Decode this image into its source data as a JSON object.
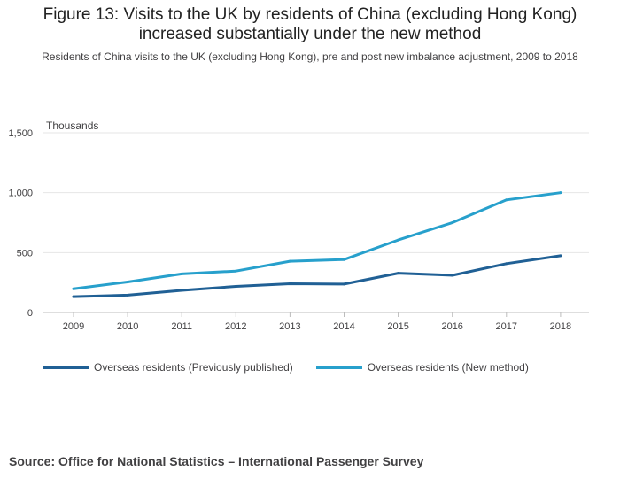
{
  "title": "Figure 13: Visits to the UK by residents of China (excluding Hong Kong) increased substantially under the new method",
  "subtitle": "Residents of China visits to the UK (excluding Hong Kong), pre and post new imbalance adjustment, 2009 to 2018",
  "source": "Source: Office for National Statistics – International Passenger Survey",
  "chart_data": {
    "type": "line",
    "title": "Figure 13: Visits to the UK by residents of China (excluding Hong Kong) increased substantially under the new method",
    "ylabel": "Thousands",
    "xlabel": "",
    "categories": [
      "2009",
      "2010",
      "2011",
      "2012",
      "2013",
      "2014",
      "2015",
      "2016",
      "2017",
      "2018"
    ],
    "ylim": [
      0,
      1500
    ],
    "yticks": [
      0,
      500,
      1000,
      1500
    ],
    "ytick_labels": [
      "0",
      "500",
      "1,000",
      "1,500"
    ],
    "grid": true,
    "legend_position": "bottom-left",
    "series": [
      {
        "name": "Overseas residents (Previously published)",
        "color": "#206095",
        "values": [
          132,
          145,
          185,
          218,
          240,
          237,
          328,
          310,
          408,
          474
        ]
      },
      {
        "name": "Overseas residents (New method)",
        "color": "#27a0cc",
        "values": [
          198,
          255,
          322,
          346,
          428,
          442,
          605,
          750,
          940,
          1000
        ]
      }
    ]
  }
}
